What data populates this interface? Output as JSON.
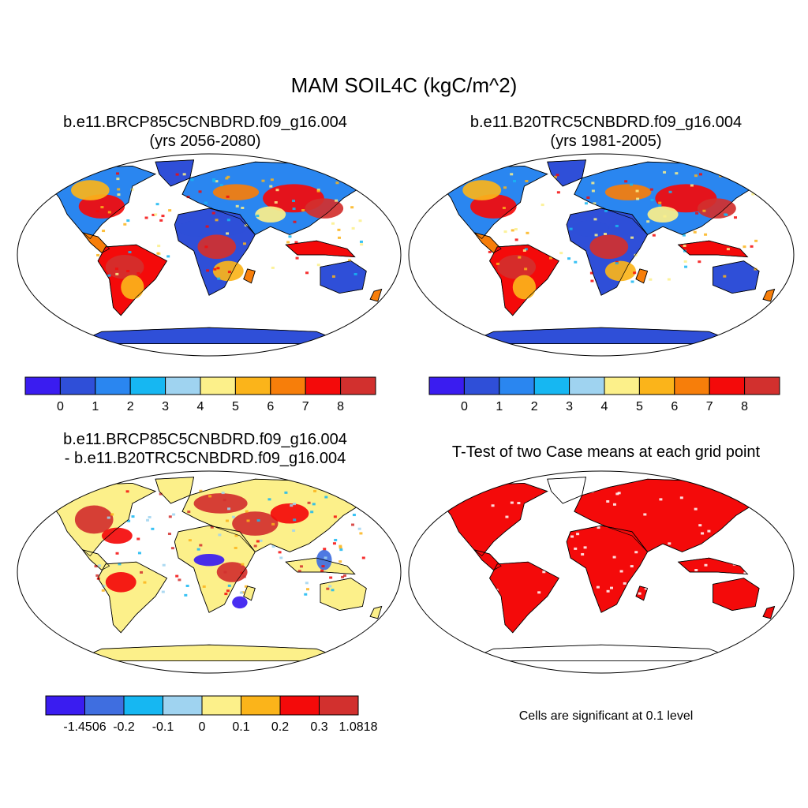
{
  "figure": {
    "title": "MAM SOIL4C (kgC/m^2)"
  },
  "panels": [
    {
      "id": "case",
      "title_line1": "b.e11.BRCP85C5CNBDRD.f09_g16.004",
      "title_line2": "(yrs 2056-2080)",
      "colorbar": {
        "colors": [
          "#3a1cf0",
          "#2f4fd8",
          "#2a86f0",
          "#16b7f2",
          "#9fd3f0",
          "#fcf08a",
          "#fbb41a",
          "#f77e0a",
          "#f40a0a",
          "#d2302e"
        ],
        "labels": [
          "0",
          "1",
          "2",
          "3",
          "4",
          "5",
          "6",
          "7",
          "8"
        ]
      }
    },
    {
      "id": "control",
      "title_line1": "b.e11.B20TRC5CNBDRD.f09_g16.004",
      "title_line2": "(yrs 1981-2005)",
      "colorbar": {
        "colors": [
          "#3a1cf0",
          "#2f4fd8",
          "#2a86f0",
          "#16b7f2",
          "#9fd3f0",
          "#fcf08a",
          "#fbb41a",
          "#f77e0a",
          "#f40a0a",
          "#d2302e"
        ],
        "labels": [
          "0",
          "1",
          "2",
          "3",
          "4",
          "5",
          "6",
          "7",
          "8"
        ]
      }
    },
    {
      "id": "difference",
      "title_line1": "b.e11.BRCP85C5CNBDRD.f09_g16.004",
      "title_line2": "- b.e11.B20TRC5CNBDRD.f09_g16.004",
      "colorbar": {
        "colors": [
          "#3a1cf0",
          "#3f6ee0",
          "#16b7f2",
          "#9fd3f0",
          "#fcf08a",
          "#fbb41a",
          "#f40a0a",
          "#d2302e"
        ],
        "labels": [
          "-1.4506",
          "-0.2",
          "-0.1",
          "0",
          "0.1",
          "0.2",
          "0.3",
          "1.0818"
        ]
      }
    },
    {
      "id": "ttest",
      "title_line1": "T-Test of two Case means at each grid point",
      "note": "Cells are significant at 0.1 level",
      "fill_color": "#f40a0a"
    }
  ]
}
